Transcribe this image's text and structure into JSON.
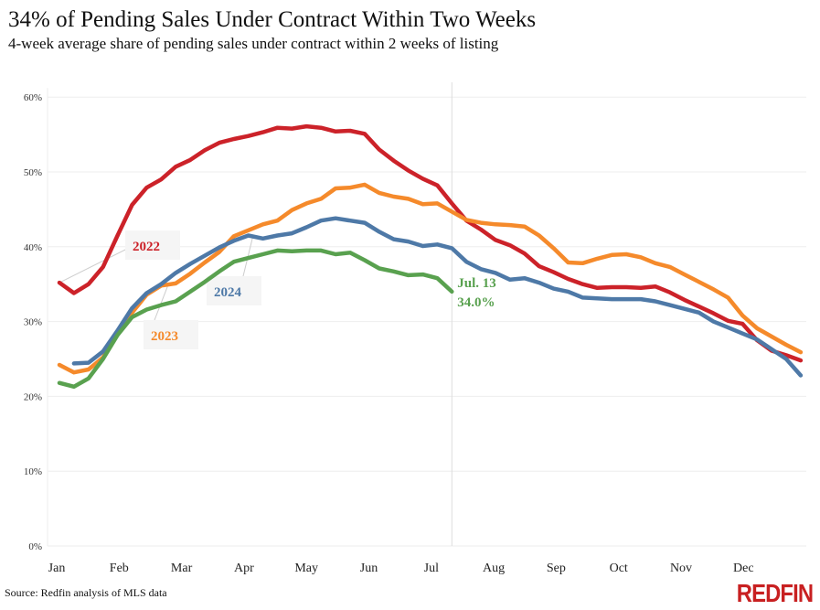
{
  "chart_data": {
    "type": "line",
    "title": "34% of Pending Sales Under Contract Within Two Weeks",
    "subtitle": "4-week average share of pending sales under contract within 2 weeks of listing",
    "source": "Source: Redfin analysis of MLS data",
    "logo": "REDFIN",
    "month_labels": [
      "Jan",
      "Feb",
      "Mar",
      "Apr",
      "May",
      "Jun",
      "Jul",
      "Aug",
      "Sep",
      "Oct",
      "Nov",
      "Dec"
    ],
    "y_ticks": [
      "0%",
      "10%",
      "20%",
      "30%",
      "40%",
      "50%",
      "60%"
    ],
    "ylim": [
      0,
      60
    ],
    "grid": true,
    "marker_line": {
      "week": 27,
      "label_date": "Jul. 13",
      "label_value": "34.0%"
    },
    "series": [
      {
        "name": "2022",
        "color": "#cc2229",
        "start": 0,
        "values": [
          35.2,
          33.8,
          35.0,
          37.3,
          41.5,
          45.6,
          47.9,
          49.0,
          50.7,
          51.6,
          52.9,
          53.9,
          54.4,
          54.8,
          55.3,
          55.9,
          55.8,
          56.1,
          55.9,
          55.4,
          55.5,
          55.1,
          53.0,
          51.5,
          50.2,
          49.1,
          48.2,
          45.8,
          43.5,
          42.3,
          40.9,
          40.2,
          39.1,
          37.4,
          36.6,
          35.7,
          35.0,
          34.5,
          34.6,
          34.6,
          34.5,
          34.7,
          33.9,
          32.9,
          32.0,
          31.1,
          30.1,
          29.7,
          27.5,
          26.1,
          25.5,
          24.8
        ]
      },
      {
        "name": "2023",
        "color": "#f58a2b",
        "start": 0,
        "values": [
          24.2,
          23.2,
          23.6,
          25.2,
          28.5,
          31.2,
          33.6,
          34.8,
          35.1,
          36.4,
          37.9,
          39.3,
          41.4,
          42.2,
          43.0,
          43.5,
          44.9,
          45.8,
          46.4,
          47.8,
          47.9,
          48.3,
          47.2,
          46.7,
          46.4,
          45.7,
          45.8,
          44.7,
          43.6,
          43.2,
          43.0,
          42.9,
          42.7,
          41.5,
          39.8,
          37.9,
          37.8,
          38.4,
          38.9,
          39.0,
          38.6,
          37.8,
          37.3,
          36.3,
          35.3,
          34.3,
          33.2,
          30.8,
          29.1,
          28.0,
          26.9,
          25.9
        ]
      },
      {
        "name": "2024",
        "color": "#4e79a7",
        "start": 1,
        "values": [
          24.4,
          24.5,
          26.0,
          28.8,
          31.8,
          33.8,
          35.0,
          36.5,
          37.7,
          38.8,
          39.9,
          40.8,
          41.5,
          41.1,
          41.5,
          41.8,
          42.6,
          43.5,
          43.8,
          43.5,
          43.2,
          42.0,
          41.0,
          40.7,
          40.1,
          40.3,
          39.8,
          38.0,
          37.0,
          36.5,
          35.6,
          35.8,
          35.2,
          34.4,
          34.0,
          33.2,
          33.1,
          33.0,
          33.0,
          33.0,
          32.7,
          32.2,
          31.7,
          31.2,
          30.0,
          29.2,
          28.4,
          27.6,
          26.3,
          25.0,
          22.8
        ]
      },
      {
        "name": "",
        "color": "#59a14f",
        "start": 0,
        "values": [
          21.8,
          21.3,
          22.4,
          25.0,
          28.2,
          30.6,
          31.6,
          32.2,
          32.7,
          34.0,
          35.3,
          36.7,
          38.0,
          38.5,
          39.0,
          39.5,
          39.4,
          39.5,
          39.5,
          39.0,
          39.2,
          38.2,
          37.1,
          36.7,
          36.2,
          36.3,
          35.8,
          34.0
        ]
      }
    ]
  }
}
